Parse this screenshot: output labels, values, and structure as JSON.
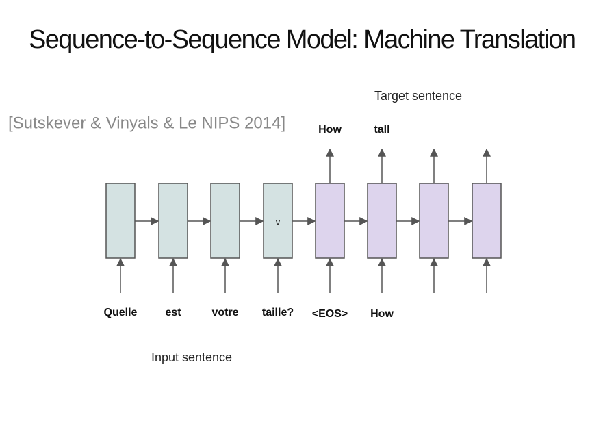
{
  "title": "Sequence-to-Sequence Model: Machine Translation",
  "citation": "[Sutskever & Vinyals & Le NIPS 2014]",
  "target_label": "Target sentence",
  "input_label": "Input sentence",
  "encoder_inputs": [
    "Quelle",
    "est",
    "votre",
    "taille?"
  ],
  "context_label": "v",
  "decoder_inputs": [
    "<EOS>",
    "How"
  ],
  "decoder_outputs": [
    "How",
    "tall"
  ]
}
